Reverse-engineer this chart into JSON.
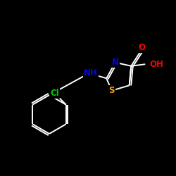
{
  "background_color": "#000000",
  "bond_color": "#ffffff",
  "atom_colors": {
    "N": "#0000ff",
    "S": "#ffa500",
    "O": "#ff0000",
    "Cl": "#00cc00",
    "H": "#ffffff",
    "C": "#ffffff"
  },
  "font_size": 8.5,
  "lw": 1.4
}
